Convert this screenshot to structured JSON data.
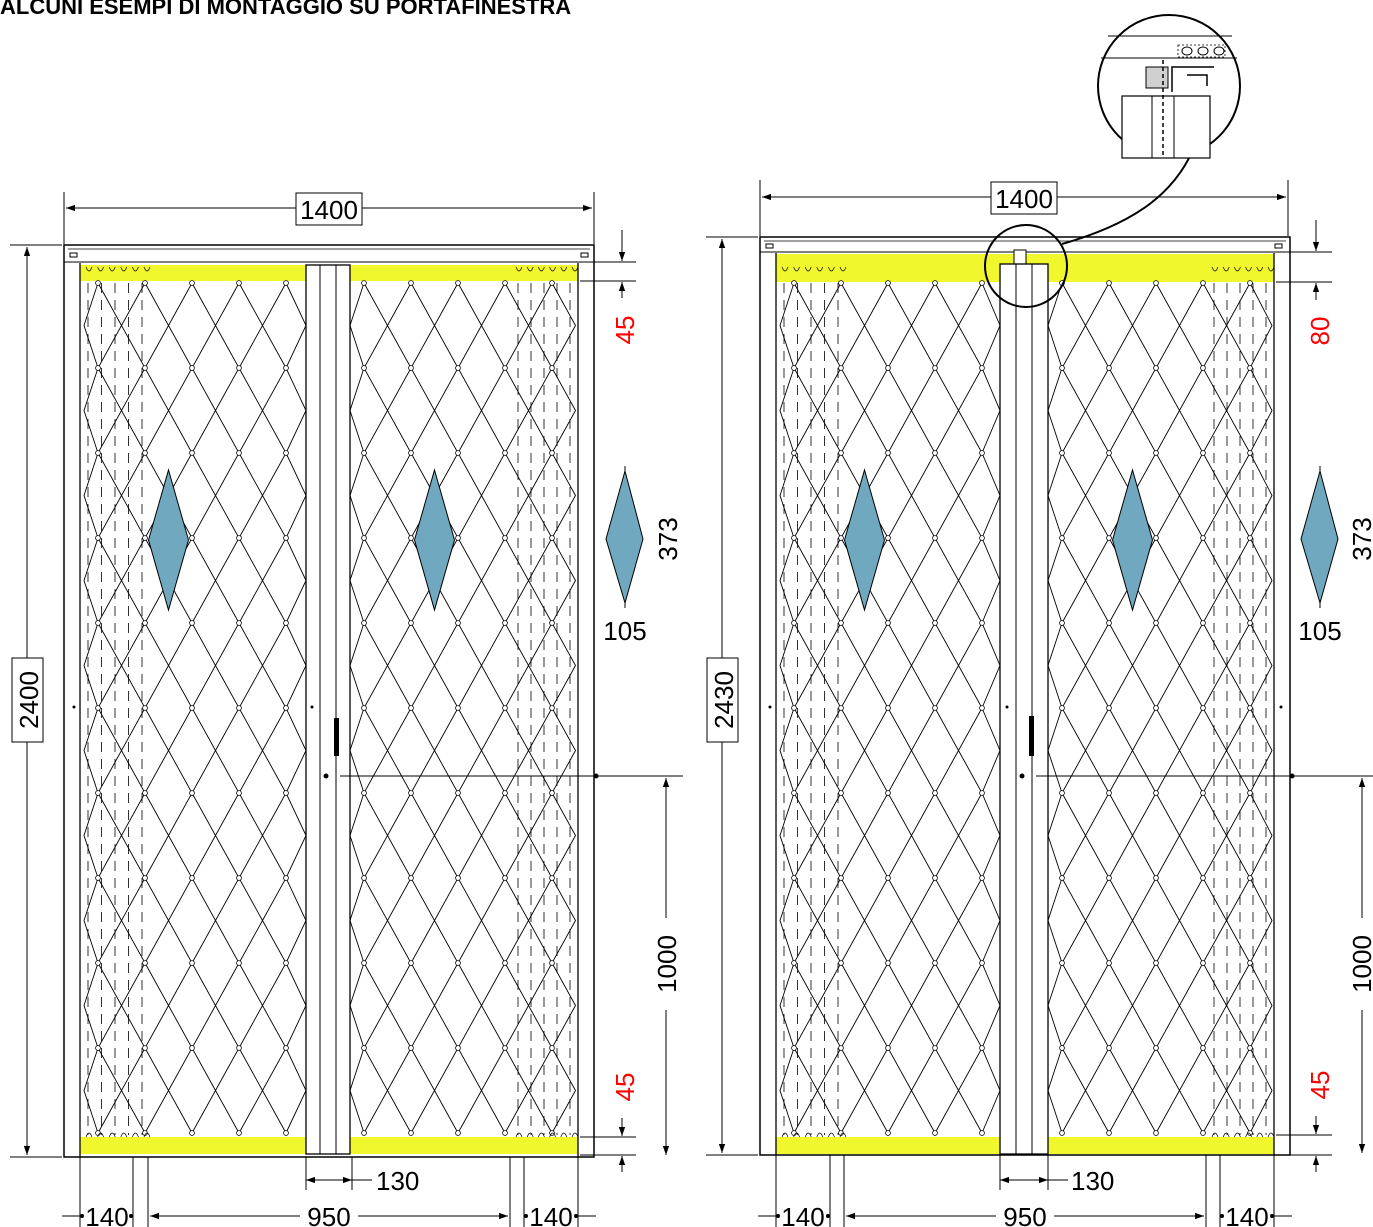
{
  "title": "ALCUNI ESEMPI DI MONTAGGIO SU PORTAFINESTRA",
  "colors": {
    "line": "#000000",
    "track": "#f1f72d",
    "diamond": "#6fa8bf",
    "accent": "#ff0000"
  },
  "examples": [
    {
      "overall_width": "1400",
      "overall_height": "2400",
      "top_clearance": "45",
      "bottom_clearance": "45",
      "mesh_diamond_height": "373",
      "mesh_diamond_width": "105",
      "lock_height": "1000",
      "central_post_width": "130",
      "left_pack": "140",
      "passage": "950",
      "right_pack": "140"
    },
    {
      "overall_width": "1400",
      "overall_height": "2430",
      "top_clearance": "80",
      "bottom_clearance": "45",
      "mesh_diamond_height": "373",
      "mesh_diamond_width": "105",
      "lock_height": "1000",
      "central_post_width": "130",
      "left_pack": "140",
      "passage": "950",
      "right_pack": "140"
    }
  ]
}
